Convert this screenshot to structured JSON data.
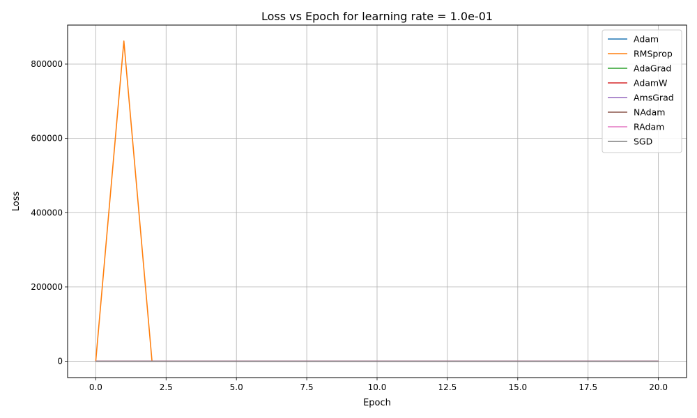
{
  "chart_data": {
    "type": "line",
    "title": "Loss vs Epoch for learning rate = 1.0e-01",
    "xlabel": "Epoch",
    "ylabel": "Loss",
    "xlim": [
      -1.0,
      21.0
    ],
    "ylim": [
      -44000,
      905000
    ],
    "x_ticks": [
      0.0,
      2.5,
      5.0,
      7.5,
      10.0,
      12.5,
      15.0,
      17.5,
      20.0
    ],
    "x_tick_labels": [
      "0.0",
      "2.5",
      "5.0",
      "7.5",
      "10.0",
      "12.5",
      "15.0",
      "17.5",
      "20.0"
    ],
    "y_ticks": [
      0,
      200000,
      400000,
      600000,
      800000
    ],
    "y_tick_labels": [
      "0",
      "200000",
      "400000",
      "600000",
      "800000"
    ],
    "grid": true,
    "legend_position": "top-right",
    "x": [
      0,
      1,
      2,
      3,
      4,
      5,
      6,
      7,
      8,
      9,
      10,
      11,
      12,
      13,
      14,
      15,
      16,
      17,
      18,
      19,
      20
    ],
    "series": [
      {
        "name": "Adam",
        "color": "#1f77b4",
        "values": [
          2.3,
          1.2,
          1.0,
          0.9,
          0.9,
          0.8,
          0.8,
          0.8,
          0.8,
          0.7,
          0.7,
          0.7,
          0.7,
          0.7,
          0.7,
          0.7,
          0.7,
          0.7,
          0.7,
          0.7,
          0.7
        ]
      },
      {
        "name": "RMSprop",
        "color": "#ff7f0e",
        "values": [
          2.3,
          862000,
          2.3,
          2.3,
          2.3,
          2.3,
          2.3,
          2.3,
          2.3,
          2.3,
          2.3,
          2.3,
          2.3,
          2.3,
          2.3,
          2.3,
          2.3,
          2.3,
          2.3,
          2.3,
          2.3
        ]
      },
      {
        "name": "AdaGrad",
        "color": "#2ca02c",
        "values": [
          2.3,
          1.5,
          1.2,
          1.1,
          1.0,
          1.0,
          0.9,
          0.9,
          0.9,
          0.9,
          0.8,
          0.8,
          0.8,
          0.8,
          0.8,
          0.8,
          0.8,
          0.8,
          0.8,
          0.8,
          0.8
        ]
      },
      {
        "name": "AdamW",
        "color": "#d62728",
        "values": [
          2.3,
          1.2,
          1.0,
          0.9,
          0.9,
          0.8,
          0.8,
          0.8,
          0.8,
          0.7,
          0.7,
          0.7,
          0.7,
          0.7,
          0.7,
          0.7,
          0.7,
          0.7,
          0.7,
          0.7,
          0.7
        ]
      },
      {
        "name": "AmsGrad",
        "color": "#9467bd",
        "values": [
          2.3,
          1.1,
          0.9,
          0.9,
          0.8,
          0.8,
          0.8,
          0.7,
          0.7,
          0.7,
          0.7,
          0.7,
          0.7,
          0.7,
          0.7,
          0.7,
          0.7,
          0.7,
          0.7,
          0.7,
          0.7
        ]
      },
      {
        "name": "NAdam",
        "color": "#8c564b",
        "values": [
          2.3,
          1.3,
          1.1,
          1.0,
          0.9,
          0.9,
          0.8,
          0.8,
          0.8,
          0.8,
          0.8,
          0.8,
          0.8,
          0.8,
          0.8,
          0.8,
          0.8,
          0.8,
          0.8,
          0.8,
          0.8
        ]
      },
      {
        "name": "RAdam",
        "color": "#e377c2",
        "values": [
          2.3,
          1.4,
          1.1,
          1.0,
          0.9,
          0.9,
          0.9,
          0.8,
          0.8,
          0.8,
          0.8,
          0.8,
          0.8,
          0.8,
          0.8,
          0.8,
          0.8,
          0.8,
          0.8,
          0.8,
          0.8
        ]
      },
      {
        "name": "SGD",
        "color": "#7f7f7f",
        "values": [
          2.3,
          1.6,
          1.3,
          1.2,
          1.1,
          1.0,
          1.0,
          1.0,
          0.9,
          0.9,
          0.9,
          0.9,
          0.9,
          0.9,
          0.9,
          0.9,
          0.9,
          0.9,
          0.9,
          0.9,
          0.9
        ]
      }
    ]
  }
}
